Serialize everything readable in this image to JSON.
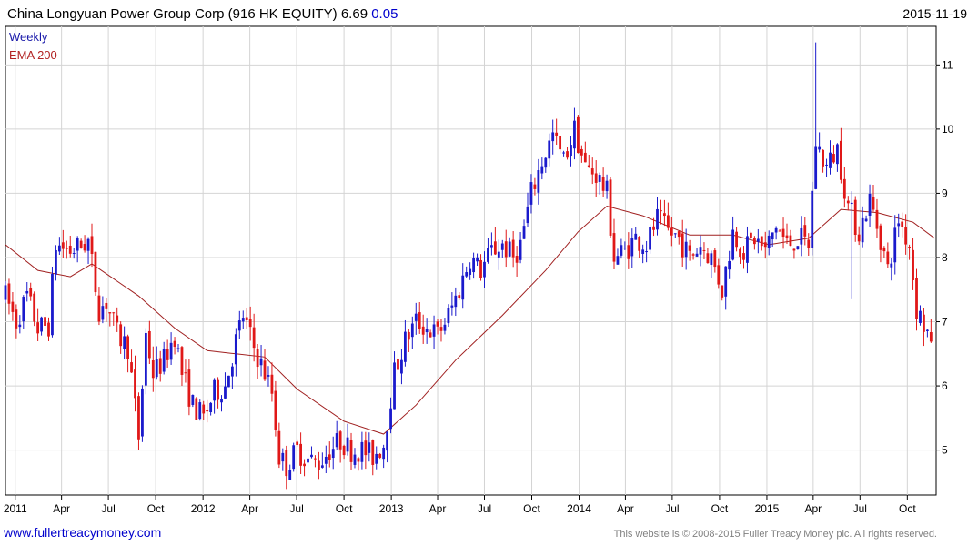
{
  "header": {
    "title": "China Longyuan Power Group Corp (916 HK EQUITY) 6.69",
    "change": "0.05",
    "date": "2015-11-19"
  },
  "legend": {
    "period": "Weekly",
    "ema": "EMA 200"
  },
  "footer": {
    "website": "www.fullertreacymoney.com",
    "copyright": "This website is © 2008-2015 Fuller Treacy Money plc. All rights reserved."
  },
  "colors": {
    "up": "#1a1acc",
    "down": "#e01818",
    "ema": "#a02020",
    "grid": "#d4d4d4",
    "axis": "#000000"
  },
  "chart_data": {
    "type": "candlestick",
    "period": "weekly",
    "yaxis_side": "right",
    "ylim": [
      4.3,
      11.6
    ],
    "yticks": [
      5,
      6,
      7,
      8,
      9,
      10,
      11
    ],
    "grid": true,
    "legend_position": "top-left",
    "xrange": [
      "2010-12-13",
      "2015-11-26"
    ],
    "xticks": [
      {
        "date": "2011-01-01",
        "label": "2011"
      },
      {
        "date": "2011-04-01",
        "label": "Apr"
      },
      {
        "date": "2011-07-01",
        "label": "Jul"
      },
      {
        "date": "2011-10-01",
        "label": "Oct"
      },
      {
        "date": "2012-01-01",
        "label": "2012"
      },
      {
        "date": "2012-04-01",
        "label": "Apr"
      },
      {
        "date": "2012-07-01",
        "label": "Jul"
      },
      {
        "date": "2012-10-01",
        "label": "Oct"
      },
      {
        "date": "2013-01-01",
        "label": "2013"
      },
      {
        "date": "2013-04-01",
        "label": "Apr"
      },
      {
        "date": "2013-07-01",
        "label": "Jul"
      },
      {
        "date": "2013-10-01",
        "label": "Oct"
      },
      {
        "date": "2014-01-01",
        "label": "2014"
      },
      {
        "date": "2014-04-01",
        "label": "Apr"
      },
      {
        "date": "2014-07-01",
        "label": "Jul"
      },
      {
        "date": "2014-10-01",
        "label": "Oct"
      },
      {
        "date": "2015-01-01",
        "label": "2015"
      },
      {
        "date": "2015-04-01",
        "label": "Apr"
      },
      {
        "date": "2015-07-01",
        "label": "Jul"
      },
      {
        "date": "2015-10-01",
        "label": "Oct"
      }
    ],
    "price_path": [
      [
        "2010-12-13",
        7.4
      ],
      [
        "2011-01-03",
        7.0
      ],
      [
        "2011-01-24",
        7.4
      ],
      [
        "2011-02-14",
        6.9
      ],
      [
        "2011-03-07",
        6.95
      ],
      [
        "2011-03-21",
        8.2
      ],
      [
        "2011-04-18",
        8.1
      ],
      [
        "2011-05-23",
        8.25
      ],
      [
        "2011-06-13",
        7.2
      ],
      [
        "2011-06-27",
        7.3
      ],
      [
        "2011-07-18",
        6.8
      ],
      [
        "2011-08-08",
        6.6
      ],
      [
        "2011-08-29",
        5.2
      ],
      [
        "2011-09-12",
        6.8
      ],
      [
        "2011-09-26",
        6.2
      ],
      [
        "2011-10-17",
        6.4
      ],
      [
        "2011-11-07",
        6.8
      ],
      [
        "2011-11-21",
        6.2
      ],
      [
        "2011-12-12",
        5.7
      ],
      [
        "2012-01-02",
        5.5
      ],
      [
        "2012-01-23",
        5.9
      ],
      [
        "2012-02-13",
        6.0
      ],
      [
        "2012-03-05",
        6.7
      ],
      [
        "2012-03-19",
        7.1
      ],
      [
        "2012-04-09",
        6.6
      ],
      [
        "2012-04-30",
        6.2
      ],
      [
        "2012-05-14",
        5.9
      ],
      [
        "2012-05-28",
        4.9
      ],
      [
        "2012-06-11",
        4.75
      ],
      [
        "2012-07-02",
        5.0
      ],
      [
        "2012-07-23",
        4.85
      ],
      [
        "2012-08-13",
        4.8
      ],
      [
        "2012-09-03",
        5.0
      ],
      [
        "2012-09-24",
        5.15
      ],
      [
        "2012-10-15",
        5.0
      ],
      [
        "2012-11-05",
        5.0
      ],
      [
        "2012-11-26",
        4.9
      ],
      [
        "2012-12-17",
        5.1
      ],
      [
        "2013-01-07",
        6.2
      ],
      [
        "2013-01-28",
        6.7
      ],
      [
        "2013-02-18",
        7.0
      ],
      [
        "2013-03-11",
        6.9
      ],
      [
        "2013-04-01",
        6.8
      ],
      [
        "2013-04-22",
        7.1
      ],
      [
        "2013-05-13",
        7.5
      ],
      [
        "2013-06-03",
        8.0
      ],
      [
        "2013-06-24",
        7.8
      ],
      [
        "2013-07-15",
        8.1
      ],
      [
        "2013-08-05",
        8.2
      ],
      [
        "2013-08-26",
        8.0
      ],
      [
        "2013-09-09",
        8.2
      ],
      [
        "2013-09-30",
        9.0
      ],
      [
        "2013-10-21",
        9.5
      ],
      [
        "2013-11-11",
        9.9
      ],
      [
        "2013-12-02",
        9.5
      ],
      [
        "2013-12-23",
        10.0
      ],
      [
        "2014-01-13",
        9.4
      ],
      [
        "2014-02-03",
        9.3
      ],
      [
        "2014-02-24",
        9.0
      ],
      [
        "2014-03-10",
        8.0
      ],
      [
        "2014-03-31",
        8.1
      ],
      [
        "2014-04-21",
        8.3
      ],
      [
        "2014-05-12",
        8.2
      ],
      [
        "2014-06-02",
        8.6
      ],
      [
        "2014-06-23",
        8.4
      ],
      [
        "2014-07-14",
        8.3
      ],
      [
        "2014-08-04",
        8.0
      ],
      [
        "2014-08-25",
        8.2
      ],
      [
        "2014-09-15",
        8.0
      ],
      [
        "2014-10-06",
        7.5
      ],
      [
        "2014-10-27",
        8.4
      ],
      [
        "2014-11-17",
        8.1
      ],
      [
        "2014-12-08",
        8.3
      ],
      [
        "2014-12-29",
        8.1
      ],
      [
        "2015-01-19",
        8.5
      ],
      [
        "2015-02-09",
        8.2
      ],
      [
        "2015-03-02",
        8.3
      ],
      [
        "2015-03-23",
        8.2
      ],
      [
        "2015-04-06",
        9.8
      ],
      [
        "2015-04-27",
        9.4
      ],
      [
        "2015-05-18",
        9.7
      ],
      [
        "2015-06-08",
        8.8
      ],
      [
        "2015-06-29",
        8.4
      ],
      [
        "2015-07-20",
        8.9
      ],
      [
        "2015-08-10",
        8.3
      ],
      [
        "2015-08-24",
        7.8
      ],
      [
        "2015-09-14",
        8.6
      ],
      [
        "2015-10-05",
        8.2
      ],
      [
        "2015-10-19",
        7.2
      ],
      [
        "2015-11-02",
        6.95
      ],
      [
        "2015-11-16",
        6.69
      ]
    ],
    "ema_200": [
      [
        "2010-12-13",
        8.2
      ],
      [
        "2011-02-14",
        7.8
      ],
      [
        "2011-04-18",
        7.7
      ],
      [
        "2011-05-30",
        7.9
      ],
      [
        "2011-08-29",
        7.4
      ],
      [
        "2011-11-07",
        6.9
      ],
      [
        "2012-01-09",
        6.55
      ],
      [
        "2012-03-05",
        6.5
      ],
      [
        "2012-04-30",
        6.45
      ],
      [
        "2012-07-02",
        5.95
      ],
      [
        "2012-10-01",
        5.45
      ],
      [
        "2012-12-17",
        5.25
      ],
      [
        "2013-02-18",
        5.7
      ],
      [
        "2013-05-06",
        6.4
      ],
      [
        "2013-08-05",
        7.1
      ],
      [
        "2013-10-28",
        7.8
      ],
      [
        "2013-12-30",
        8.4
      ],
      [
        "2014-02-24",
        8.8
      ],
      [
        "2014-05-05",
        8.65
      ],
      [
        "2014-08-04",
        8.35
      ],
      [
        "2014-10-27",
        8.35
      ],
      [
        "2015-01-05",
        8.2
      ],
      [
        "2015-03-23",
        8.3
      ],
      [
        "2015-05-25",
        8.75
      ],
      [
        "2015-08-03",
        8.7
      ],
      [
        "2015-10-12",
        8.55
      ],
      [
        "2015-11-23",
        8.3
      ]
    ],
    "spikes": [
      {
        "date": "2015-04-06",
        "high": 11.35
      },
      {
        "date": "2015-06-15",
        "low": 7.35
      }
    ],
    "last": 6.69
  }
}
